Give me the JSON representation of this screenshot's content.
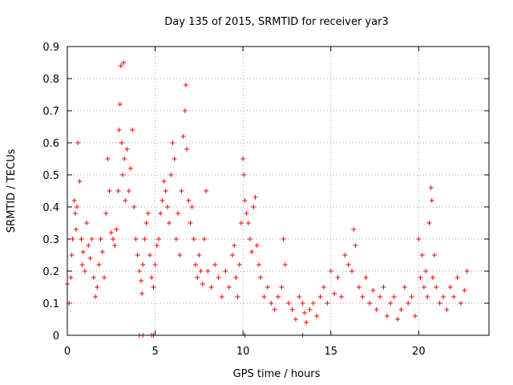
{
  "chart_data": {
    "type": "scatter",
    "title": "Day 135 of 2015, SRMTID for receiver yar3",
    "xlabel": "GPS time / hours",
    "ylabel": "SRMTID / TECUs",
    "xlim": [
      0,
      24
    ],
    "ylim": [
      0,
      0.9
    ],
    "x_ticks": [
      0,
      5,
      10,
      15,
      20
    ],
    "x_tick_labels": [
      "0",
      "5",
      "10",
      "15",
      "20"
    ],
    "y_ticks": [
      0,
      0.1,
      0.2,
      0.3,
      0.4,
      0.5,
      0.6,
      0.7,
      0.8,
      0.9
    ],
    "y_tick_labels": [
      "0",
      "0.1",
      "0.2",
      "0.3",
      "0.4",
      "0.5",
      "0.6",
      "0.7",
      "0.8",
      "0.9"
    ],
    "grid": true,
    "marker": "+",
    "marker_color": "#ff0000",
    "series": [
      {
        "name": "yar3",
        "x": [
          0.0,
          0.1,
          0.2,
          0.25,
          0.3,
          0.4,
          0.45,
          0.5,
          0.55,
          0.6,
          0.7,
          0.8,
          0.85,
          0.9,
          1.0,
          1.1,
          1.2,
          1.3,
          1.4,
          1.5,
          1.6,
          1.7,
          1.8,
          1.9,
          2.0,
          2.1,
          2.2,
          2.3,
          2.4,
          2.5,
          2.6,
          2.7,
          2.8,
          2.9,
          2.95,
          3.0,
          3.05,
          3.1,
          3.15,
          3.2,
          3.25,
          3.3,
          3.4,
          3.5,
          3.6,
          3.7,
          3.8,
          3.9,
          4.0,
          4.1,
          4.2,
          4.25,
          4.3,
          4.4,
          4.5,
          4.6,
          4.7,
          4.8,
          4.9,
          5.0,
          5.1,
          5.2,
          5.3,
          5.4,
          5.5,
          5.6,
          5.7,
          5.8,
          5.9,
          6.0,
          6.1,
          6.2,
          6.3,
          6.4,
          6.5,
          6.6,
          6.7,
          6.75,
          6.8,
          6.9,
          7.0,
          7.1,
          7.2,
          7.3,
          7.4,
          7.5,
          7.6,
          7.7,
          7.8,
          7.9,
          8.0,
          8.2,
          8.4,
          8.6,
          8.8,
          9.0,
          9.2,
          9.4,
          9.5,
          9.6,
          9.7,
          9.8,
          9.9,
          10.0,
          10.05,
          10.1,
          10.2,
          10.3,
          10.4,
          10.5,
          10.6,
          10.7,
          10.8,
          10.9,
          11.0,
          11.2,
          11.4,
          11.6,
          11.8,
          12.0,
          12.2,
          12.3,
          12.4,
          12.6,
          12.8,
          13.0,
          13.2,
          13.4,
          13.5,
          13.6,
          13.8,
          14.0,
          14.2,
          14.4,
          14.6,
          14.8,
          15.0,
          15.2,
          15.4,
          15.6,
          15.8,
          16.0,
          16.2,
          16.3,
          16.4,
          16.6,
          16.8,
          17.0,
          17.2,
          17.4,
          17.6,
          17.8,
          18.0,
          18.2,
          18.4,
          18.6,
          18.8,
          19.0,
          19.2,
          19.4,
          19.6,
          19.8,
          20.0,
          20.1,
          20.2,
          20.3,
          20.4,
          20.5,
          20.6,
          20.7,
          20.75,
          20.8,
          20.9,
          21.0,
          21.2,
          21.4,
          21.6,
          21.8,
          22.0,
          22.2,
          22.4,
          22.6,
          22.75,
          4.1,
          4.3,
          4.8,
          4.9,
          10.1,
          13.4
        ],
        "y": [
          0.16,
          0.1,
          0.18,
          0.25,
          0.3,
          0.42,
          0.38,
          0.33,
          0.4,
          0.6,
          0.48,
          0.3,
          0.22,
          0.26,
          0.2,
          0.35,
          0.28,
          0.24,
          0.3,
          0.18,
          0.12,
          0.15,
          0.22,
          0.3,
          0.26,
          0.18,
          0.38,
          0.55,
          0.45,
          0.32,
          0.3,
          0.28,
          0.33,
          0.45,
          0.64,
          0.72,
          0.84,
          0.6,
          0.5,
          0.85,
          0.55,
          0.42,
          0.58,
          0.45,
          0.52,
          0.64,
          0.4,
          0.3,
          0.25,
          0.2,
          0.17,
          0.13,
          0.22,
          0.3,
          0.35,
          0.38,
          0.25,
          0.18,
          0.15,
          0.22,
          0.28,
          0.3,
          0.38,
          0.42,
          0.48,
          0.45,
          0.4,
          0.35,
          0.5,
          0.6,
          0.55,
          0.3,
          0.38,
          0.25,
          0.45,
          0.62,
          0.7,
          0.78,
          0.58,
          0.42,
          0.35,
          0.4,
          0.3,
          0.22,
          0.18,
          0.25,
          0.2,
          0.16,
          0.3,
          0.45,
          0.2,
          0.15,
          0.22,
          0.18,
          0.12,
          0.2,
          0.15,
          0.25,
          0.28,
          0.18,
          0.12,
          0.22,
          0.35,
          0.55,
          0.5,
          0.42,
          0.38,
          0.35,
          0.3,
          0.26,
          0.4,
          0.43,
          0.28,
          0.22,
          0.18,
          0.12,
          0.15,
          0.1,
          0.08,
          0.12,
          0.15,
          0.3,
          0.22,
          0.1,
          0.08,
          0.05,
          0.12,
          0.1,
          0.07,
          0.04,
          0.08,
          0.1,
          0.06,
          0.12,
          0.15,
          0.1,
          0.2,
          0.13,
          0.18,
          0.12,
          0.25,
          0.22,
          0.2,
          0.33,
          0.28,
          0.15,
          0.12,
          0.18,
          0.1,
          0.14,
          0.08,
          0.12,
          0.15,
          0.06,
          0.1,
          0.12,
          0.05,
          0.08,
          0.15,
          0.1,
          0.12,
          0.06,
          0.3,
          0.18,
          0.25,
          0.15,
          0.2,
          0.12,
          0.35,
          0.46,
          0.42,
          0.18,
          0.25,
          0.15,
          0.1,
          0.12,
          0.08,
          0.15,
          0.12,
          0.18,
          0.1,
          0.14,
          0.2,
          0.0,
          0.0,
          0.0,
          0.0,
          0.0,
          0.0
        ]
      }
    ]
  }
}
